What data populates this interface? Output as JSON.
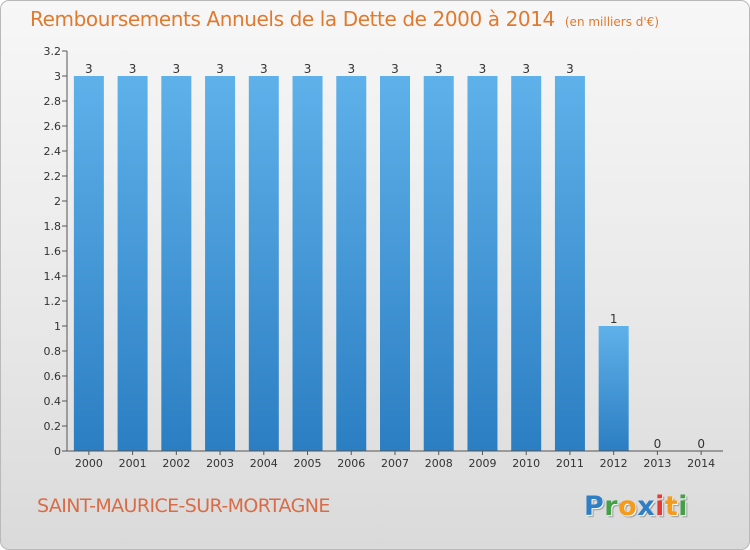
{
  "title": "Remboursements Annuels de la Dette de 2000 à 2014",
  "unit_label": "(en milliers d'€)",
  "commune": "SAINT-MAURICE-SUR-MORTAGNE",
  "logo": {
    "letters": [
      "P",
      "r",
      "o",
      "x",
      "i",
      "t",
      "i"
    ],
    "colors": [
      "#2f7fc6",
      "#43a047",
      "#f59b1c",
      "#2f7fc6",
      "#e53935",
      "#f59b1c",
      "#43a047"
    ]
  },
  "colors": {
    "bar_light": "#5fb1ea",
    "bar_dark": "#2b7ec2",
    "title": "#e07a2e",
    "axis": "#555555"
  },
  "chart_data": {
    "type": "bar",
    "title": "Remboursements Annuels de la Dette de 2000 à 2014",
    "ylabel": "en milliers d'€",
    "xlabel": "",
    "categories": [
      "2000",
      "2001",
      "2002",
      "2003",
      "2004",
      "2005",
      "2006",
      "2007",
      "2008",
      "2009",
      "2010",
      "2011",
      "2012",
      "2013",
      "2014"
    ],
    "values": [
      3,
      3,
      3,
      3,
      3,
      3,
      3,
      3,
      3,
      3,
      3,
      3,
      1,
      0,
      0
    ],
    "data_labels": [
      "3",
      "3",
      "3",
      "3",
      "3",
      "3",
      "3",
      "3",
      "3",
      "3",
      "3",
      "3",
      "1",
      "0",
      "0"
    ],
    "ylim": [
      0,
      3.2
    ],
    "yticks": [
      0,
      0.2,
      0.4,
      0.6,
      0.8,
      1,
      1.2,
      1.4,
      1.6,
      1.8,
      2,
      2.2,
      2.4,
      2.6,
      2.8,
      3,
      3.2
    ],
    "ytick_labels": [
      "0",
      "0.2",
      "0.4",
      "0.6",
      "0.8",
      "1",
      "1.2",
      "1.4",
      "1.6",
      "1.8",
      "2",
      "2.2",
      "2.4",
      "2.6",
      "2.8",
      "3",
      "3.2"
    ],
    "grid": false,
    "legend": "none"
  }
}
